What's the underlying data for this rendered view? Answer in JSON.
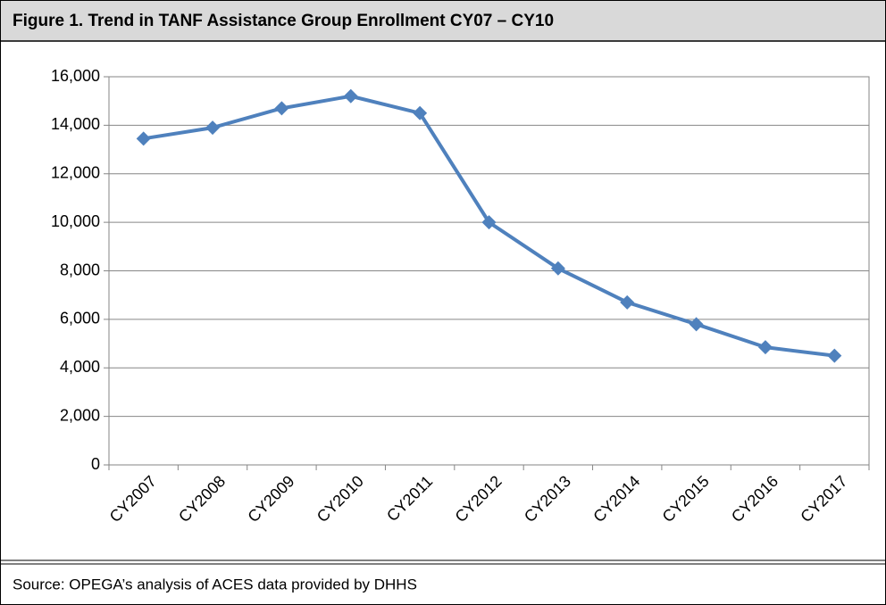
{
  "header": {
    "title": "Figure 1. Trend in TANF Assistance Group Enrollment CY07  – CY10"
  },
  "chart_data": {
    "type": "line",
    "categories": [
      "CY2007",
      "CY2008",
      "CY2009",
      "CY2010",
      "CY2011",
      "CY2012",
      "CY2013",
      "CY2014",
      "CY2015",
      "CY2016",
      "CY2017"
    ],
    "series": [
      {
        "name": "Enrollment",
        "color": "#4f81bd",
        "values": [
          13450,
          13900,
          14700,
          15200,
          14500,
          10000,
          8100,
          6700,
          5800,
          4850,
          4500
        ]
      }
    ],
    "ylim": [
      0,
      16000
    ],
    "yticks": [
      0,
      {
        "value": 2000,
        "label": "2,000"
      },
      {
        "value": 4000,
        "label": "4,000"
      },
      {
        "value": 6000,
        "label": "6,000"
      },
      {
        "value": 8000,
        "label": "8,000"
      },
      {
        "value": 10000,
        "label": "10,000"
      },
      {
        "value": 12000,
        "label": "12,000"
      },
      {
        "value": 14000,
        "label": "14,000"
      },
      {
        "value": 16000,
        "label": "16,000"
      }
    ],
    "grid": true
  },
  "footer": {
    "source": "Source: OPEGA’s analysis of ACES data provided by DHHS"
  }
}
